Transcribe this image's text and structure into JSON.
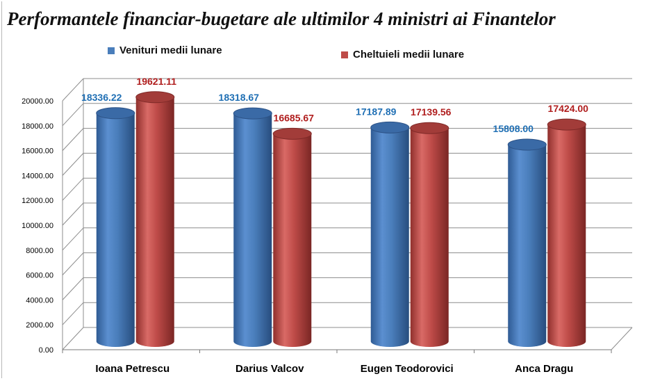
{
  "chart_data": {
    "type": "bar",
    "title": "Performantele financiar-bugetare ale ultimilor 4 ministri ai Finantelor",
    "categories": [
      "Ioana Petrescu",
      "Darius Valcov",
      "Eugen Teodorovici",
      "Anca Dragu"
    ],
    "series": [
      {
        "name": "Venituri medii lunare",
        "color": "#4a7ebb",
        "values": [
          18336.22,
          18318.67,
          17187.89,
          15808.0
        ],
        "labels": [
          "18336.22",
          "18318.67",
          "17187.89",
          "15808.00"
        ],
        "label_color": "#1f6fb4"
      },
      {
        "name": "Cheltuieli medii lunare",
        "color": "#be4b48",
        "values": [
          19621.11,
          16685.67,
          17139.56,
          17424.0
        ],
        "labels": [
          "19621.11",
          "16685.67",
          "17139.56",
          "17424.00"
        ],
        "label_color": "#b01e1e"
      }
    ],
    "yticks": [
      "0.00",
      "2000.00",
      "4000.00",
      "6000.00",
      "8000.00",
      "10000.00",
      "12000.00",
      "14000.00",
      "16000.00",
      "18000.00",
      "20000.00"
    ],
    "ylim": [
      0,
      20000
    ],
    "grid": true,
    "legend_position": "top",
    "style": "3d-cylinder"
  }
}
